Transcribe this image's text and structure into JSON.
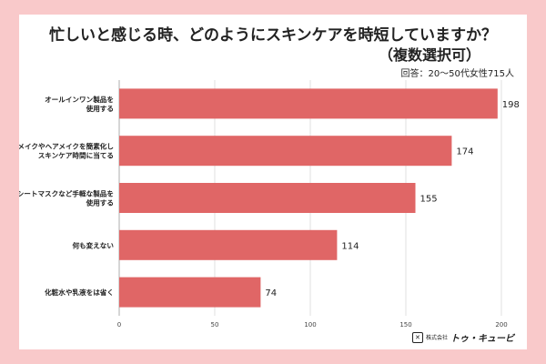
{
  "header": {
    "title_line1": "忙しいと感じる時、どのようにスキンケアを時短していますか？",
    "title_line2": "（複数選択可）",
    "respondents": "回答：20〜50代女性715人"
  },
  "logo": {
    "icon": "stamp-icon",
    "prefix": "株式会社",
    "name": "トゥ・キュービ"
  },
  "colors": {
    "background": "#f9c9ca",
    "bar": "#e06666"
  },
  "chart_data": {
    "type": "bar",
    "orientation": "horizontal",
    "title": "忙しいと感じる時、どのようにスキンケアを時短していますか？（複数選択可）",
    "categories": [
      [
        "オールインワン製品を",
        "使用する"
      ],
      [
        "メイクやヘアメイクを簡素化し",
        "スキンケア時間に当てる"
      ],
      [
        "シートマスクなど手軽な製品を",
        "使用する"
      ],
      [
        "何も変えない"
      ],
      [
        "化粧水や乳液をは省く"
      ]
    ],
    "values": [
      198,
      174,
      155,
      114,
      74
    ],
    "xlim": [
      0,
      200
    ],
    "xticks": [
      0,
      50,
      100,
      150,
      200
    ],
    "grid": true
  }
}
